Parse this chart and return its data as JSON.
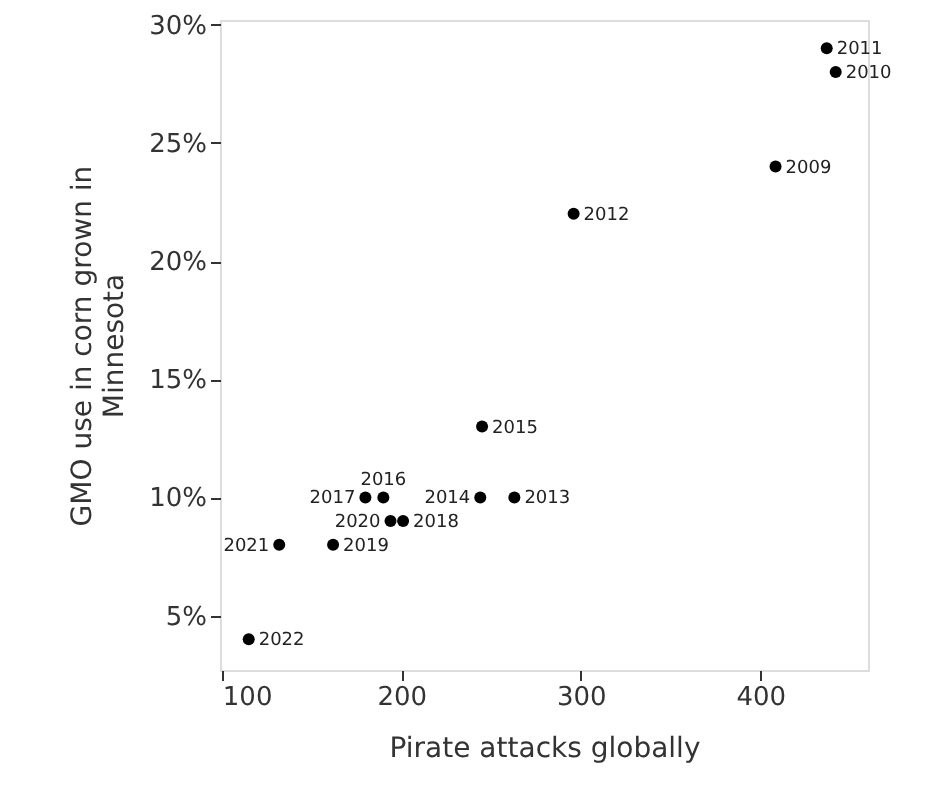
{
  "chart_data": {
    "type": "scatter",
    "xlabel": "Pirate attacks globally",
    "ylabel": "GMO use in corn grown in Minnesota",
    "x": [
      408.5,
      442,
      437,
      296,
      263,
      244,
      245,
      190,
      180,
      201,
      162,
      194,
      132,
      115
    ],
    "values": [
      24,
      28,
      29,
      22,
      10,
      10,
      13,
      10,
      10,
      9,
      8,
      9,
      8,
      4
    ],
    "color": "#000000",
    "marker": "circle",
    "grid": false,
    "xlim": [
      99,
      460
    ],
    "xticks": [
      100,
      200,
      300,
      400
    ],
    "ylim": [
      2.7,
      30.2
    ],
    "yticks": [
      {
        "value": 5,
        "label": "5%"
      },
      {
        "value": 10,
        "label": "10%"
      },
      {
        "value": 15,
        "label": "15%"
      },
      {
        "value": 20,
        "label": "20%"
      },
      {
        "value": 25,
        "label": "25%"
      },
      {
        "value": 30,
        "label": "30%"
      }
    ],
    "annotations": [
      {
        "text": "2009",
        "x": 408.5,
        "y": 24
      },
      {
        "text": "2010",
        "x": 442,
        "y": 28
      },
      {
        "text": "2011",
        "x": 437,
        "y": 29
      },
      {
        "text": "2012",
        "x": 296,
        "y": 22
      },
      {
        "text": "2013",
        "x": 263,
        "y": 10
      },
      {
        "text": "2014",
        "x": 244,
        "y": 10
      },
      {
        "text": "2015",
        "x": 245,
        "y": 13
      },
      {
        "text": "2016",
        "x": 190,
        "y": 10
      },
      {
        "text": "2017",
        "x": 180,
        "y": 10
      },
      {
        "text": "2018",
        "x": 201,
        "y": 9
      },
      {
        "text": "2019",
        "x": 162,
        "y": 8
      },
      {
        "text": "2020",
        "x": 194,
        "y": 9
      },
      {
        "text": "2021",
        "x": 132,
        "y": 8
      },
      {
        "text": "2022",
        "x": 115,
        "y": 4
      }
    ]
  }
}
